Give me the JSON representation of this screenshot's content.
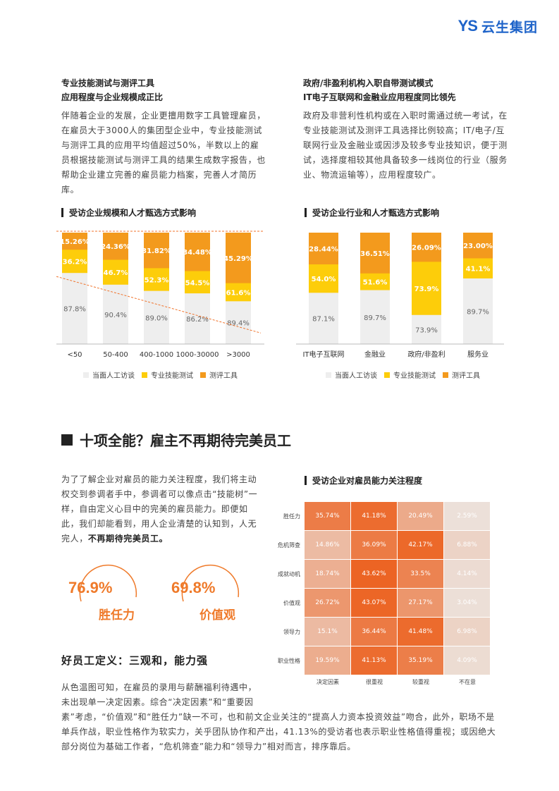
{
  "logo": {
    "mark": "YS",
    "name": "云生集团"
  },
  "left_section": {
    "title_line1": "专业技能测试与测评工具",
    "title_line2": "应用程度与企业规模成正比",
    "paragraph": "伴随着企业的发展，企业更擅用数字工具管理雇员，在雇员大于3000人的集团型企业中，专业技能测试与测评工具的应用平均值超过50%，半数以上的雇员根据技能测试与测评工具的结果生成数字报告，也帮助企业建立完善的雇员能力档案，完善人才简历库。"
  },
  "right_section": {
    "title_line1": "政府/非盈利机构入职自带测试模式",
    "title_line2": "IT电子互联网和金融业应用程度同比领先",
    "paragraph": "政府及非营利性机构或在入职时需通过统一考试，在专业技能测试及测评工具选择比例较高；IT/电子/互联网行业及金融业或因涉及较多专业技知识，便于测试，选择度相较其他具备较多一线岗位的行业（服务业、物流运输等），应用程度较广。"
  },
  "legend_labels": {
    "interview": "当面人工访谈",
    "skill": "专业技能测试",
    "tool": "测评工具"
  },
  "colors": {
    "interview": "#eeeeee",
    "skill": "#fdcd0a",
    "tool": "#f39a1d",
    "trend": "#f0732b",
    "accent": "#ef7a2a"
  },
  "chart_data": [
    {
      "type": "bar",
      "title": "受访企业规模和人才甄选方式影响",
      "categories": [
        "<50",
        "50-400",
        "400-1000",
        "1000-30000",
        ">3000"
      ],
      "series": [
        {
          "name": "当面人工访谈",
          "values": [
            87.8,
            90.4,
            89.0,
            86.2,
            89.4
          ],
          "labels": [
            "87.8%",
            "90.4%",
            "89.0%",
            "86.2%",
            "89.4%"
          ]
        },
        {
          "name": "专业技能测试",
          "values": [
            36.2,
            46.7,
            52.3,
            54.5,
            61.6
          ],
          "labels": [
            "36.2%",
            "46.7%",
            "52.3%",
            "54.5%",
            "61.6%"
          ]
        },
        {
          "name": "测评工具",
          "values": [
            15.26,
            24.36,
            31.82,
            34.48,
            45.29
          ],
          "labels": [
            "15.26%",
            "24.36%",
            "31.82%",
            "34.48%",
            "45.29%"
          ]
        }
      ],
      "trend_line": true,
      "grid": false,
      "legend_position": "bottom"
    },
    {
      "type": "bar",
      "title": "受访企业行业和人才甄选方式影响",
      "categories": [
        "IT电子互联网",
        "金融业",
        "政府/非盈利",
        "服务业"
      ],
      "series": [
        {
          "name": "当面人工访谈",
          "values": [
            87.1,
            89.7,
            73.9,
            89.7
          ],
          "labels": [
            "87.1%",
            "89.7%",
            "73.9%",
            "89.7%"
          ]
        },
        {
          "name": "专业技能测试",
          "values": [
            54.0,
            51.6,
            73.9,
            41.1
          ],
          "labels": [
            "54.0%",
            "51.6%",
            "73.9%",
            "41.1%"
          ]
        },
        {
          "name": "测评工具",
          "values": [
            28.44,
            36.51,
            26.09,
            23.0
          ],
          "labels": [
            "28.44%",
            "36.51%",
            "26.09%",
            "23.00%"
          ]
        }
      ],
      "grid": false,
      "legend_position": "bottom"
    },
    {
      "type": "heatmap",
      "title": "受访企业对雇员能力关注程度",
      "rows": [
        "胜任力",
        "危机筛查",
        "成就动机",
        "价值观",
        "领导力",
        "职业性格"
      ],
      "columns": [
        "决定因素",
        "很重视",
        "较重视",
        "不在意"
      ],
      "values": [
        [
          35.74,
          41.18,
          20.49,
          2.59
        ],
        [
          14.86,
          36.09,
          42.17,
          6.88
        ],
        [
          18.74,
          43.62,
          33.5,
          4.14
        ],
        [
          26.72,
          43.07,
          27.17,
          3.04
        ],
        [
          15.1,
          36.44,
          41.48,
          6.98
        ],
        [
          19.59,
          41.13,
          35.19,
          4.09
        ]
      ],
      "labels": [
        [
          "35.74%",
          "41.18%",
          "20.49%",
          "2.59%"
        ],
        [
          "14.86%",
          "36.09%",
          "42.17%",
          "6.88%"
        ],
        [
          "18.74%",
          "43.62%",
          "33.5%",
          "4.14%"
        ],
        [
          "26.72%",
          "43.07%",
          "27.17%",
          "3.04%"
        ],
        [
          "15.1%",
          "36.44%",
          "41.48%",
          "6.98%"
        ],
        [
          "19.59%",
          "41.13%",
          "35.19%",
          "4.09%"
        ]
      ]
    }
  ],
  "section2": {
    "heading": "十项全能？雇主不再期待完美员工",
    "intro": "为了了解企业对雇员的能力关注程度，我们将主动权交到参调者手中，参调者可以像点击“技能树”一样，自由定义心目中的完美的雇员能力。即便如此，我们却能看到，用人企业清楚的认知到，人无完人，",
    "intro_bold": "不再期待完美员工。",
    "stat1_value": "76.9%",
    "stat1_label": "胜任力",
    "stat2_value": "69.8%",
    "stat2_label": "价值观",
    "subheading": "好员工定义：三观和，能力强",
    "para_line1": "从色温图可知，在雇员的录用与薪酬福利待遇中，",
    "para_line2": "未出现单一决定因素。综合“决定因素”和“重要因",
    "para_line3": "素”考虑，“价值观”和“胜任力”缺一不可，也和前文企业关注的“提高人力资本投资效益”吻合，此外，职场不是单兵作战，职业性格作为软实力，关乎团队协作和产出，41.13%的受访者也表示职业性格值得重视；或因绝大部分岗位为基础工作者，“危机筛查”能力和“领导力”相对而言，排序靠后。"
  }
}
